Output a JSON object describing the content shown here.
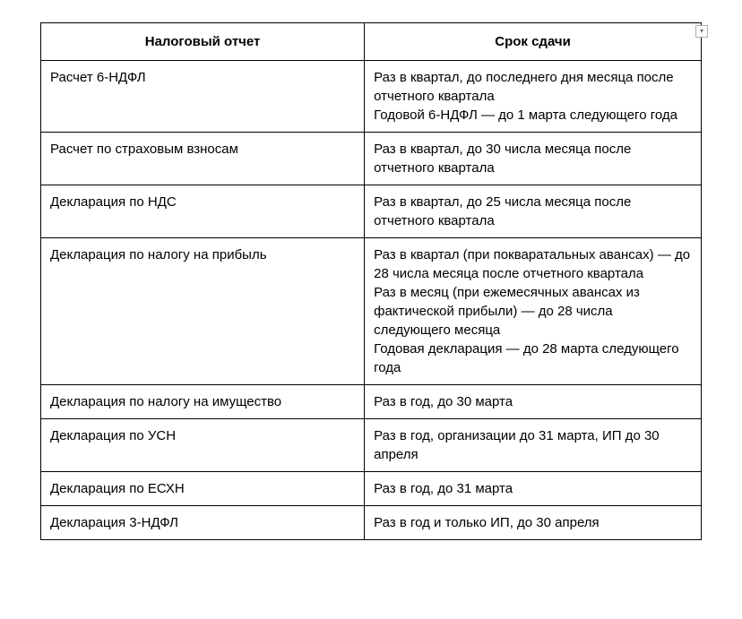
{
  "table": {
    "headers": {
      "report": "Налоговый отчет",
      "deadline": "Срок сдачи"
    },
    "rows": [
      {
        "report": "Расчет 6-НДФЛ",
        "deadline": "Раз в квартал, до последнего дня месяца после отчетного квартала\nГодовой 6-НДФЛ — до 1 марта следующего года"
      },
      {
        "report": "Расчет по страховым взносам",
        "deadline": "Раз в квартал, до 30 числа месяца после отчетного квартала"
      },
      {
        "report": "Декларация по НДС",
        "deadline": "Раз в квартал, до 25 числа месяца после отчетного квартала"
      },
      {
        "report": "Декларация по налогу на прибыль",
        "deadline": "Раз в квартал (при покваратальных авансах) — до 28 числа месяца после отчетного квартала\nРаз в месяц (при ежемесячных авансах из фактической прибыли) — до 28 числа следующего месяца\nГодовая декларация — до 28 марта следующего года"
      },
      {
        "report": "Декларация по налогу на имущество",
        "deadline": "Раз в год, до 30 марта"
      },
      {
        "report": "Декларация по УСН",
        "deadline": "Раз в год, организации до 31 марта, ИП до 30 апреля"
      },
      {
        "report": "Декларация по ЕСХН",
        "deadline": "Раз в год, до 31 марта"
      },
      {
        "report": "Декларация 3-НДФЛ",
        "deadline": "Раз в год и только ИП, до 30 апреля"
      }
    ],
    "border_color": "#000000",
    "background_color": "#ffffff",
    "text_color": "#000000",
    "font_size": 15,
    "header_font_weight": "bold"
  },
  "dropdown_glyph": "▾"
}
